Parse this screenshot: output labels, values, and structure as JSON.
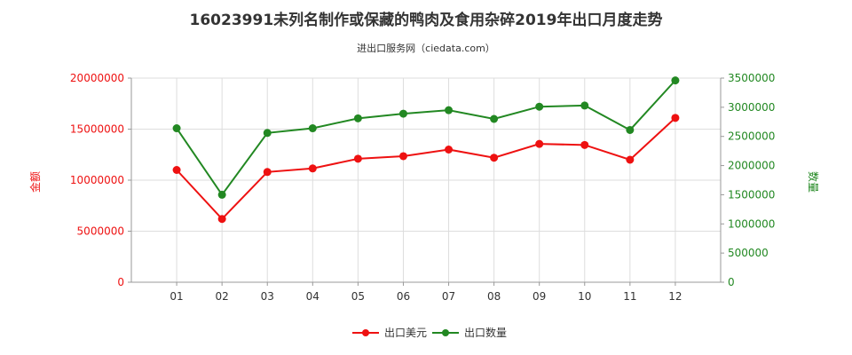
{
  "chart_data": {
    "type": "line",
    "title": "16023991未列名制作或保藏的鸭肉及食用杂碎2019年出口月度走势",
    "subtitle": "进出口服务网（ciedata.com）",
    "categories": [
      "01",
      "02",
      "03",
      "04",
      "05",
      "06",
      "07",
      "08",
      "09",
      "10",
      "11",
      "12"
    ],
    "y_left": {
      "label": "金额",
      "lim": [
        0,
        20000000
      ],
      "ticks": [
        "0",
        "5000000",
        "10000000",
        "15000000",
        "20000000"
      ]
    },
    "y_right": {
      "label": "数量",
      "lim": [
        0,
        3500000
      ],
      "ticks": [
        "0",
        "500000",
        "1000000",
        "1500000",
        "2000000",
        "2500000",
        "3000000",
        "3500000"
      ]
    },
    "series": [
      {
        "name": "出口美元",
        "axis": "left",
        "color": "#ee1111",
        "values": [
          11000000,
          6200000,
          10800000,
          11150000,
          12100000,
          12350000,
          13000000,
          12200000,
          13550000,
          13450000,
          12000000,
          16100000
        ]
      },
      {
        "name": "出口数量",
        "axis": "right",
        "color": "#228822",
        "values": [
          2640000,
          1500000,
          2560000,
          2640000,
          2810000,
          2890000,
          2950000,
          2800000,
          3010000,
          3030000,
          2610000,
          3460000
        ]
      }
    ],
    "grid": true,
    "legend": "bottom-center"
  }
}
